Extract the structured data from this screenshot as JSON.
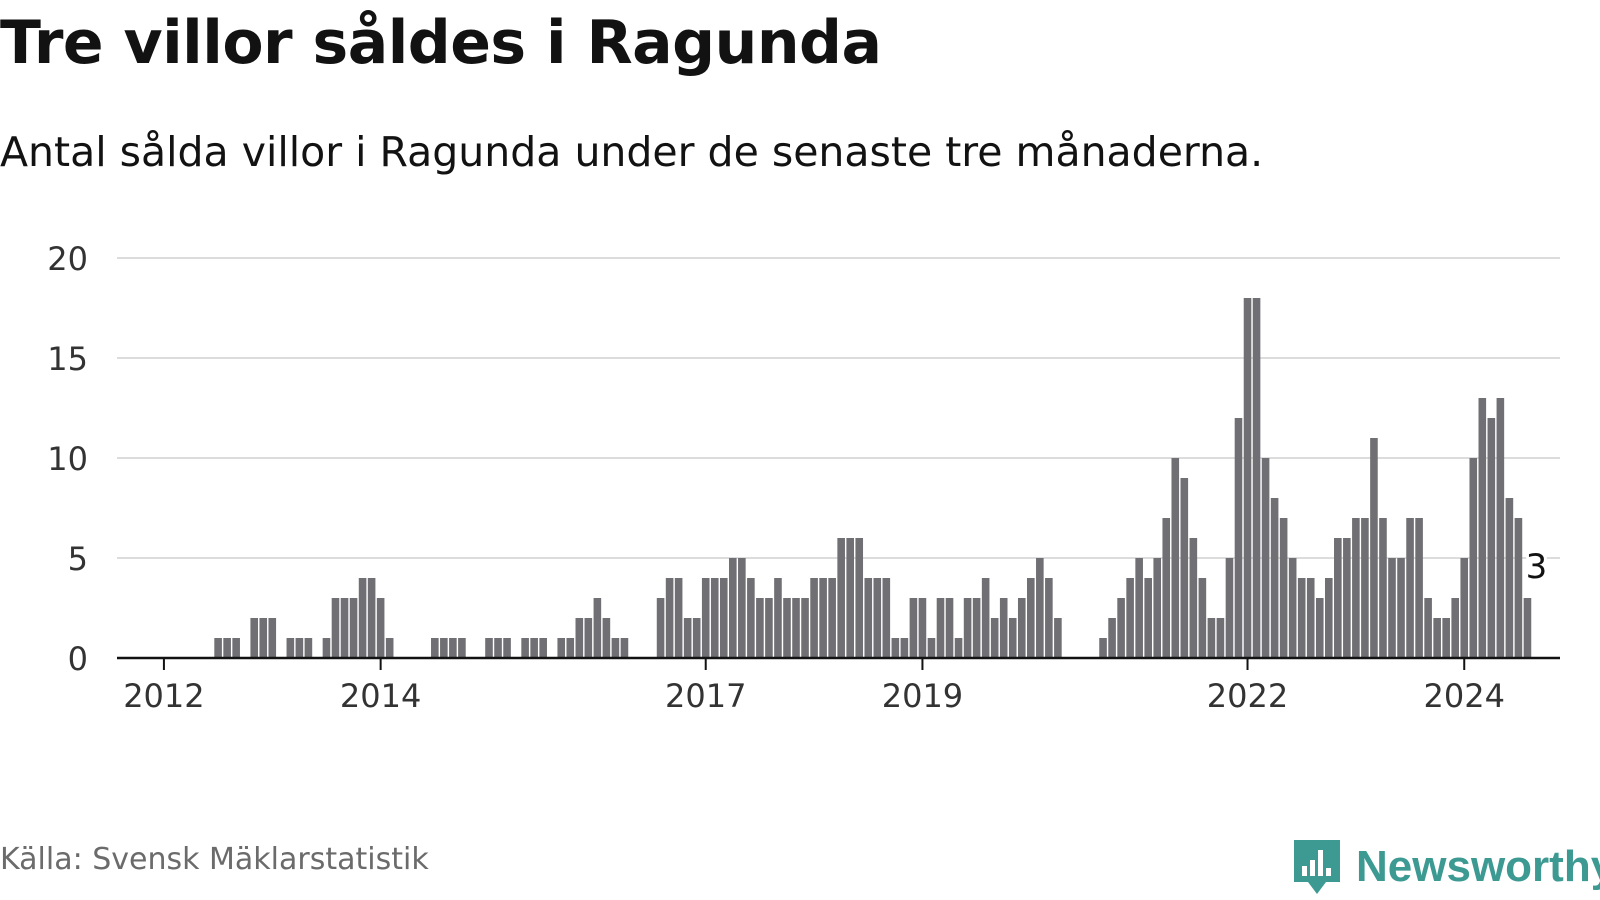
{
  "title": "Tre villor såldes i Ragunda",
  "subtitle": "Antal sålda villor i Ragunda under de senaste tre månaderna.",
  "source": "Källa: Svensk Mäklarstatistik",
  "brand": {
    "name": "Newsworthy",
    "logo_icon": "newsworthy-chart-logo-icon"
  },
  "colors": {
    "bar": "#707074",
    "highlight": "#1aa39d",
    "grid": "#dcdcdc",
    "axis": "#121212",
    "text": "#121212",
    "brand": "#3c9a93"
  },
  "chart_data": {
    "type": "bar",
    "title": "Tre villor såldes i Ragunda",
    "xlabel": "",
    "ylabel": "",
    "ylim": [
      0,
      20
    ],
    "yticks": [
      0,
      5,
      10,
      15,
      20
    ],
    "grid": true,
    "start_month": "2011-09",
    "xtick_labels": [
      {
        "label": "2012",
        "month": "2012-01"
      },
      {
        "label": "2014",
        "month": "2014-01"
      },
      {
        "label": "2017",
        "month": "2017-01"
      },
      {
        "label": "2019",
        "month": "2019-01"
      },
      {
        "label": "2022",
        "month": "2022-01"
      },
      {
        "label": "2024",
        "month": "2024-01"
      }
    ],
    "values": [
      0,
      0,
      0,
      0,
      0,
      0,
      0,
      0,
      0,
      0,
      1,
      1,
      1,
      0,
      2,
      2,
      2,
      0,
      1,
      1,
      1,
      0,
      1,
      3,
      3,
      3,
      4,
      4,
      3,
      1,
      0,
      0,
      0,
      0,
      1,
      1,
      1,
      1,
      0,
      0,
      1,
      1,
      1,
      0,
      1,
      1,
      1,
      0,
      1,
      1,
      2,
      2,
      3,
      2,
      1,
      1,
      0,
      0,
      0,
      3,
      4,
      4,
      2,
      2,
      4,
      4,
      4,
      5,
      5,
      4,
      3,
      3,
      4,
      3,
      3,
      3,
      4,
      4,
      4,
      6,
      6,
      6,
      4,
      4,
      4,
      1,
      1,
      3,
      3,
      1,
      3,
      3,
      1,
      3,
      3,
      4,
      2,
      3,
      2,
      3,
      4,
      5,
      4,
      2,
      0,
      0,
      0,
      0,
      1,
      2,
      3,
      4,
      5,
      4,
      5,
      7,
      10,
      9,
      6,
      4,
      2,
      2,
      5,
      12,
      18,
      18,
      10,
      8,
      7,
      5,
      4,
      4,
      3,
      4,
      6,
      6,
      7,
      7,
      11,
      7,
      5,
      5,
      7,
      7,
      3,
      2,
      2,
      3,
      5,
      10,
      13,
      12,
      13,
      8,
      7,
      3
    ],
    "highlight": {
      "index": 156,
      "value": 3,
      "label": "3"
    }
  }
}
